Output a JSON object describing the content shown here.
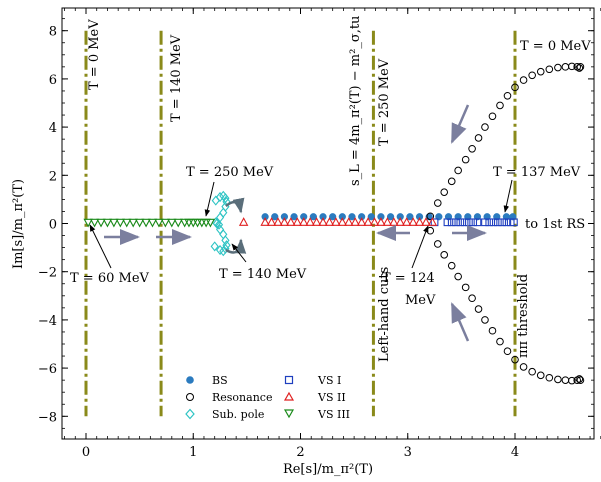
{
  "chart_data": {
    "type": "scatter",
    "xlabel": "Re[s]/m_π²(T)",
    "ylabel": "Im[s]/m_π²(T)",
    "xlim": [
      -0.2,
      4.8
    ],
    "ylim": [
      -8.8,
      8.8
    ],
    "x_ticks": [
      0,
      1,
      2,
      3,
      4
    ],
    "y_ticks": [
      -8,
      -6,
      -4,
      -2,
      0,
      2,
      4,
      6,
      8
    ],
    "x_tick_labels": [
      "0",
      "1",
      "2",
      "3",
      "4"
    ],
    "y_tick_labels": [
      "−8",
      "−6",
      "−4",
      "−2",
      "0",
      "2",
      "4",
      "6",
      "8"
    ],
    "vertical_lines": [
      {
        "x": 0.0,
        "label": "T = 0 MeV",
        "color": "#8a8a1a"
      },
      {
        "x": 0.7,
        "label": "T = 140 MeV",
        "color": "#8a8a1a"
      },
      {
        "x": 2.68,
        "label": "T = 250 MeV",
        "color": "#8a8a1a"
      },
      {
        "x": 4.0,
        "label": "ππ threshold",
        "color": "#8a8a1a"
      }
    ],
    "lhc_label": "s_L = 4m_π²(T) − m²_σ,tu",
    "lhc_cuts_label": "Left-hand cuts",
    "annotations": [
      {
        "text": "T = 0 MeV",
        "x": 4.58,
        "y": 6.5
      },
      {
        "text": "T = 137 MeV",
        "x": 3.98,
        "y": 0.3
      },
      {
        "text": "T = 250 MeV",
        "x": 1.15,
        "y": 0.1
      },
      {
        "text": "T = 140 MeV",
        "x": 1.35,
        "y": -0.1
      },
      {
        "text": "T = 60 MeV",
        "x": 0.05,
        "y": -0.1
      },
      {
        "text": "T = 124",
        "x": 3.22,
        "y": -0.2
      },
      {
        "text": "MeV",
        "x": 3.22,
        "y": -0.2
      },
      {
        "text": "to 1st RS",
        "x": 4.05,
        "y": 0.0
      }
    ],
    "series": [
      {
        "name": "BS",
        "marker": "circle-filled",
        "color": "#2b7bbf",
        "x": [
          1.67,
          1.76,
          1.85,
          1.94,
          2.03,
          2.12,
          2.21,
          2.3,
          2.39,
          2.48,
          2.57,
          2.66,
          2.75,
          2.84,
          2.93,
          3.02,
          3.11,
          3.2,
          3.29,
          3.38,
          3.47,
          3.56,
          3.65,
          3.74,
          3.83,
          3.92,
          3.98
        ],
        "y": [
          0.28,
          0.28,
          0.28,
          0.28,
          0.28,
          0.28,
          0.28,
          0.28,
          0.28,
          0.28,
          0.28,
          0.28,
          0.28,
          0.28,
          0.28,
          0.28,
          0.28,
          0.28,
          0.28,
          0.28,
          0.28,
          0.28,
          0.28,
          0.28,
          0.28,
          0.28,
          0.28
        ]
      },
      {
        "name": "Resonance",
        "marker": "circle-open",
        "color": "#000000",
        "x": [
          3.21,
          3.28,
          3.34,
          3.41,
          3.47,
          3.54,
          3.6,
          3.66,
          3.72,
          3.79,
          3.86,
          3.93,
          4.0,
          4.08,
          4.16,
          4.24,
          4.32,
          4.4,
          4.47,
          4.53,
          4.58,
          4.6,
          4.61,
          3.21,
          3.28,
          3.34,
          3.41,
          3.47,
          3.54,
          3.6,
          3.66,
          3.72,
          3.79,
          3.86,
          3.93,
          4.0,
          4.08,
          4.16,
          4.24,
          4.32,
          4.4,
          4.47,
          4.53,
          4.58,
          4.6,
          4.61
        ],
        "y": [
          0.3,
          0.85,
          1.3,
          1.75,
          2.2,
          2.65,
          3.1,
          3.55,
          4.0,
          4.45,
          4.9,
          5.3,
          5.65,
          5.95,
          6.15,
          6.3,
          6.4,
          6.47,
          6.5,
          6.52,
          6.5,
          6.45,
          6.5,
          -0.3,
          -0.85,
          -1.3,
          -1.75,
          -2.2,
          -2.65,
          -3.1,
          -3.55,
          -4.0,
          -4.45,
          -4.9,
          -5.3,
          -5.65,
          -5.95,
          -6.15,
          -6.3,
          -6.4,
          -6.47,
          -6.5,
          -6.52,
          -6.5,
          -6.45,
          -6.5
        ]
      },
      {
        "name": "Sub. pole",
        "marker": "diamond-open",
        "color": "#2ec4c4",
        "x": [
          1.21,
          1.25,
          1.28,
          1.3,
          1.31,
          1.3,
          1.28,
          1.25,
          1.21,
          1.25,
          1.28,
          1.3,
          1.31,
          1.3,
          1.28,
          1.25,
          1.2,
          1.22,
          1.24
        ],
        "y": [
          0.05,
          0.25,
          0.45,
          0.7,
          0.9,
          1.05,
          1.15,
          1.1,
          0.95,
          -0.25,
          -0.45,
          -0.7,
          -0.9,
          -1.05,
          -1.15,
          -1.1,
          -0.95,
          0.0,
          -0.05
        ]
      },
      {
        "name": "VS I",
        "marker": "square-open",
        "color": "#1f3fbf",
        "x": [
          3.25,
          3.37,
          3.41,
          3.45,
          3.49,
          3.53,
          3.57,
          3.61,
          3.65,
          3.72,
          3.76,
          3.8,
          3.84,
          3.88,
          3.92,
          3.96,
          3.99
        ],
        "y": [
          0.05,
          0.05,
          0.05,
          0.05,
          0.05,
          0.05,
          0.05,
          0.05,
          0.05,
          0.05,
          0.05,
          0.05,
          0.05,
          0.05,
          0.05,
          0.05,
          0.05
        ]
      },
      {
        "name": "VS II",
        "marker": "triangle-up-open",
        "color": "#e02020",
        "x": [
          1.47,
          1.67,
          1.73,
          1.79,
          1.85,
          1.91,
          1.97,
          2.03,
          2.09,
          2.15,
          2.21,
          2.27,
          2.33,
          2.39,
          2.45,
          2.51,
          2.57,
          2.63,
          2.69,
          2.75,
          2.81,
          2.87,
          2.93,
          2.99,
          3.05,
          3.11,
          3.17,
          3.23
        ],
        "y": [
          0.05,
          0.05,
          0.05,
          0.05,
          0.05,
          0.05,
          0.05,
          0.05,
          0.05,
          0.05,
          0.05,
          0.05,
          0.05,
          0.05,
          0.05,
          0.05,
          0.05,
          0.05,
          0.05,
          0.05,
          0.05,
          0.05,
          0.05,
          0.05,
          0.05,
          0.05,
          0.05,
          0.05
        ]
      },
      {
        "name": "VS III",
        "marker": "triangle-down-open",
        "color": "#1a8a1a",
        "x": [
          0.02,
          0.08,
          0.14,
          0.2,
          0.26,
          0.32,
          0.38,
          0.44,
          0.5,
          0.56,
          0.62,
          0.68,
          0.74,
          0.8,
          0.86,
          0.92,
          0.96,
          1.0,
          1.04,
          1.08,
          1.12,
          1.16
        ],
        "y": [
          0.05,
          0.05,
          0.05,
          0.05,
          0.05,
          0.05,
          0.05,
          0.05,
          0.05,
          0.05,
          0.05,
          0.05,
          0.05,
          0.05,
          0.05,
          0.05,
          0.05,
          0.05,
          0.05,
          0.05,
          0.05,
          0.05
        ]
      }
    ],
    "legend": {
      "placement": "bottom-center",
      "columns": 2
    }
  }
}
